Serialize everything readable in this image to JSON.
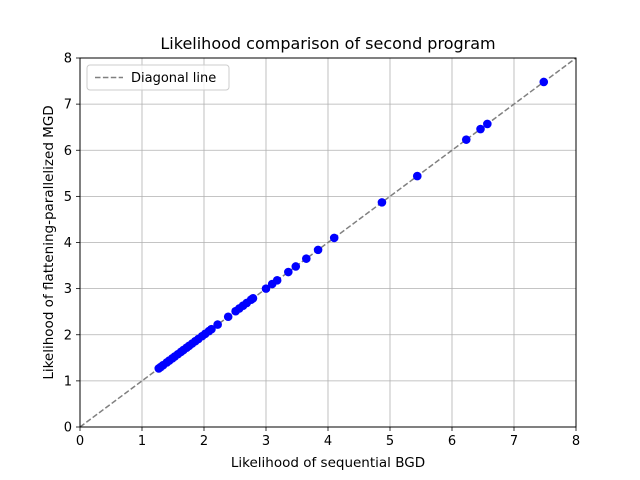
{
  "chart_data": {
    "type": "scatter",
    "title": "Likelihood comparison of second program",
    "xlabel": "Likelihood of sequential BGD",
    "ylabel": "Likelihood of flattening-parallelized MGD",
    "xlim": [
      0,
      8
    ],
    "ylim": [
      0,
      8
    ],
    "xticks": [
      0,
      1,
      2,
      3,
      4,
      5,
      6,
      7,
      8
    ],
    "yticks": [
      0,
      1,
      2,
      3,
      4,
      5,
      6,
      7,
      8
    ],
    "grid": true,
    "legend": {
      "placement": "top-left",
      "entries": [
        {
          "label": "Diagonal line",
          "style": "dashed",
          "color": "#808080"
        }
      ]
    },
    "reference_line": {
      "from": [
        0,
        0
      ],
      "to": [
        8,
        8
      ],
      "color": "#808080",
      "style": "dashed"
    },
    "series": [
      {
        "color": "#0000ff",
        "points": [
          [
            1.27,
            1.27
          ],
          [
            1.3,
            1.3
          ],
          [
            1.34,
            1.34
          ],
          [
            1.4,
            1.4
          ],
          [
            1.44,
            1.44
          ],
          [
            1.49,
            1.49
          ],
          [
            1.53,
            1.53
          ],
          [
            1.58,
            1.58
          ],
          [
            1.63,
            1.63
          ],
          [
            1.67,
            1.67
          ],
          [
            1.72,
            1.72
          ],
          [
            1.76,
            1.76
          ],
          [
            1.81,
            1.81
          ],
          [
            1.86,
            1.86
          ],
          [
            1.91,
            1.91
          ],
          [
            1.97,
            1.97
          ],
          [
            2.02,
            2.02
          ],
          [
            2.08,
            2.08
          ],
          [
            2.12,
            2.12
          ],
          [
            2.22,
            2.22
          ],
          [
            2.39,
            2.39
          ],
          [
            2.51,
            2.51
          ],
          [
            2.57,
            2.57
          ],
          [
            2.63,
            2.63
          ],
          [
            2.69,
            2.69
          ],
          [
            2.76,
            2.76
          ],
          [
            2.79,
            2.79
          ],
          [
            3.0,
            3.0
          ],
          [
            3.1,
            3.1
          ],
          [
            3.18,
            3.18
          ],
          [
            3.36,
            3.36
          ],
          [
            3.48,
            3.48
          ],
          [
            3.65,
            3.65
          ],
          [
            3.84,
            3.84
          ],
          [
            4.1,
            4.1
          ],
          [
            4.87,
            4.87
          ],
          [
            5.44,
            5.44
          ],
          [
            6.23,
            6.23
          ],
          [
            6.46,
            6.46
          ],
          [
            6.57,
            6.57
          ],
          [
            7.48,
            7.48
          ]
        ]
      }
    ]
  }
}
